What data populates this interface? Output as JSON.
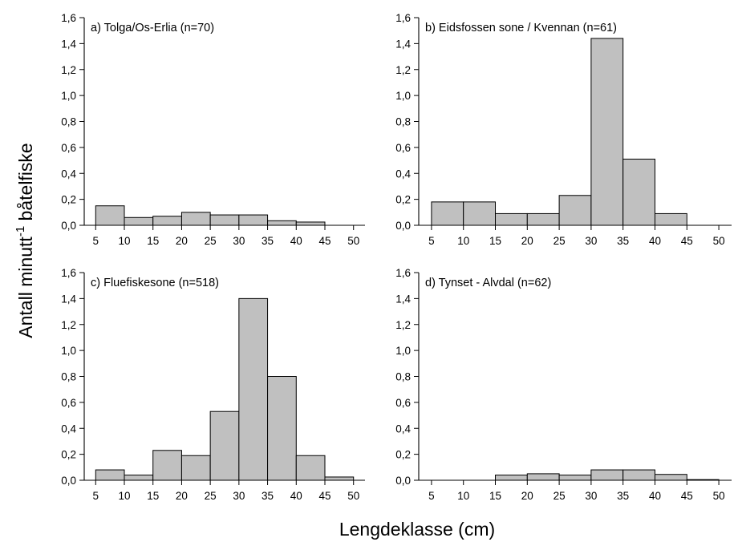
{
  "figure": {
    "xlabel": "Lengdeklasse (cm)",
    "ylabel_main": "Antall minutt",
    "ylabel_sup": "-1",
    "ylabel_tail": " båtelfiske"
  },
  "chart_data": [
    {
      "type": "bar",
      "title": "a) Tolga/Os-Erlia (n=70)",
      "bin_edges": [
        5,
        10,
        15,
        20,
        25,
        30,
        35,
        40,
        45,
        50
      ],
      "values": [
        0.15,
        0.06,
        0.07,
        0.1,
        0.08,
        0.08,
        0.035,
        0.025,
        0.0
      ],
      "xticks": [
        "5",
        "10",
        "15",
        "20",
        "25",
        "30",
        "35",
        "40",
        "45",
        "50"
      ],
      "yticks": [
        "0,0",
        "0,2",
        "0,4",
        "0,6",
        "0,8",
        "1,0",
        "1,2",
        "1,4",
        "1,6"
      ],
      "xlim": [
        3,
        52
      ],
      "ylim": [
        0,
        1.6
      ]
    },
    {
      "type": "bar",
      "title": "b) Eidsfossen sone / Kvennan (n=61)",
      "bin_edges": [
        5,
        10,
        15,
        20,
        25,
        30,
        35,
        40,
        45,
        50
      ],
      "values": [
        0.18,
        0.18,
        0.09,
        0.09,
        0.23,
        1.44,
        0.51,
        0.09,
        0.0
      ],
      "xticks": [
        "5",
        "10",
        "15",
        "20",
        "25",
        "30",
        "35",
        "40",
        "45",
        "50"
      ],
      "yticks": [
        "0,0",
        "0,2",
        "0,4",
        "0,6",
        "0,8",
        "1,0",
        "1,2",
        "1,4",
        "1,6"
      ],
      "xlim": [
        3,
        52
      ],
      "ylim": [
        0,
        1.6
      ]
    },
    {
      "type": "bar",
      "title": "c) Fluefiskesone (n=518)",
      "bin_edges": [
        5,
        10,
        15,
        20,
        25,
        30,
        35,
        40,
        45,
        50
      ],
      "values": [
        0.08,
        0.04,
        0.23,
        0.19,
        0.53,
        1.4,
        0.8,
        0.19,
        0.025
      ],
      "xticks": [
        "5",
        "10",
        "15",
        "20",
        "25",
        "30",
        "35",
        "40",
        "45",
        "50"
      ],
      "yticks": [
        "0,0",
        "0,2",
        "0,4",
        "0,6",
        "0,8",
        "1,0",
        "1,2",
        "1,4",
        "1,6"
      ],
      "xlim": [
        3,
        52
      ],
      "ylim": [
        0,
        1.6
      ]
    },
    {
      "type": "bar",
      "title": "d) Tynset - Alvdal (n=62)",
      "bin_edges": [
        5,
        10,
        15,
        20,
        25,
        30,
        35,
        40,
        45,
        50
      ],
      "values": [
        0.0,
        0.0,
        0.04,
        0.05,
        0.04,
        0.08,
        0.08,
        0.045,
        0.005
      ],
      "xticks": [
        "5",
        "10",
        "15",
        "20",
        "25",
        "30",
        "35",
        "40",
        "45",
        "50"
      ],
      "yticks": [
        "0,0",
        "0,2",
        "0,4",
        "0,6",
        "0,8",
        "1,0",
        "1,2",
        "1,4",
        "1,6"
      ],
      "xlim": [
        3,
        52
      ],
      "ylim": [
        0,
        1.6
      ]
    }
  ]
}
